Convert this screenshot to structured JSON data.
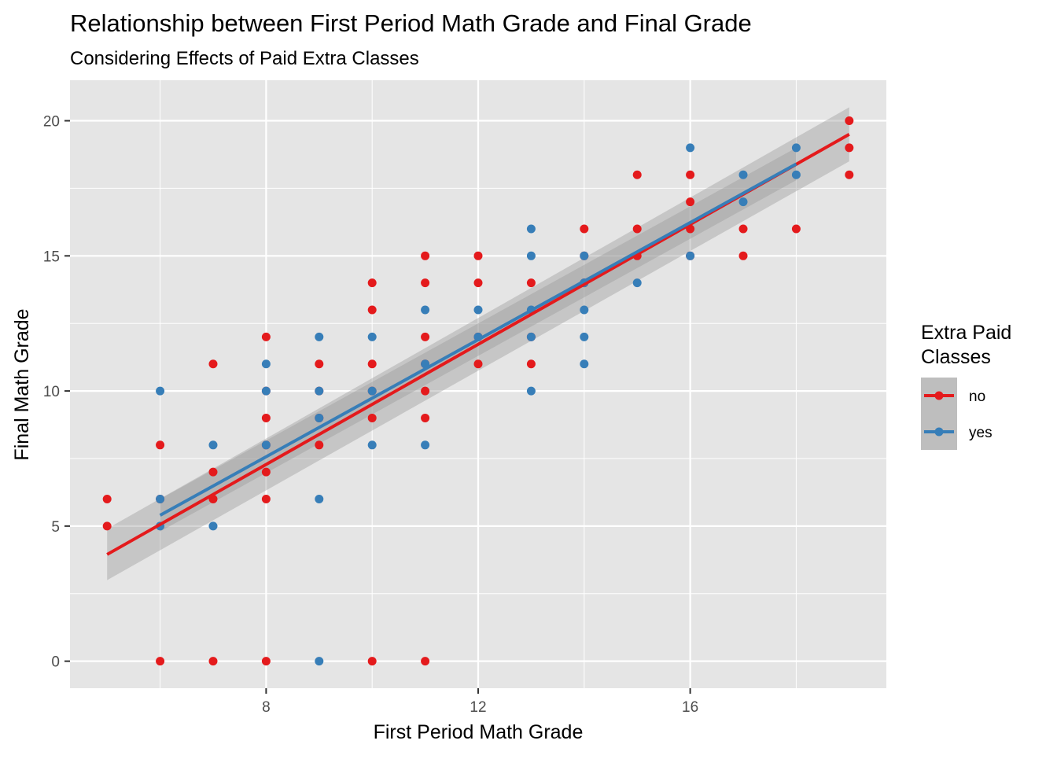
{
  "chart_data": {
    "type": "scatter",
    "title": "Relationship between First Period Math Grade and Final Grade",
    "subtitle": "Considering Effects of Paid Extra Classes",
    "xlabel": "First Period Math Grade",
    "ylabel": "Final Math Grade",
    "xlim": [
      4.3,
      19.7
    ],
    "ylim": [
      -1,
      21.5
    ],
    "x_ticks": [
      8,
      12,
      16
    ],
    "y_ticks": [
      0,
      5,
      10,
      15,
      20
    ],
    "grid": true,
    "legend": {
      "title_lines": [
        "Extra Paid",
        "Classes"
      ],
      "position": "right"
    },
    "series": [
      {
        "name": "no",
        "color": "#E41A1C",
        "points": [
          [
            5,
            6
          ],
          [
            5,
            5
          ],
          [
            6,
            8
          ],
          [
            6,
            6
          ],
          [
            6,
            0
          ],
          [
            7,
            11
          ],
          [
            7,
            7
          ],
          [
            7,
            6
          ],
          [
            7,
            0
          ],
          [
            8,
            12
          ],
          [
            8,
            10
          ],
          [
            8,
            9
          ],
          [
            8,
            8
          ],
          [
            8,
            7
          ],
          [
            8,
            6
          ],
          [
            8,
            0
          ],
          [
            9,
            11
          ],
          [
            9,
            10
          ],
          [
            9,
            9
          ],
          [
            9,
            8
          ],
          [
            10,
            14
          ],
          [
            10,
            13
          ],
          [
            10,
            11
          ],
          [
            10,
            10
          ],
          [
            10,
            9
          ],
          [
            10,
            0
          ],
          [
            11,
            15
          ],
          [
            11,
            14
          ],
          [
            11,
            12
          ],
          [
            11,
            11
          ],
          [
            11,
            10
          ],
          [
            11,
            9
          ],
          [
            11,
            0
          ],
          [
            12,
            15
          ],
          [
            12,
            14
          ],
          [
            12,
            12
          ],
          [
            12,
            11
          ],
          [
            13,
            14
          ],
          [
            13,
            12
          ],
          [
            13,
            11
          ],
          [
            14,
            16
          ],
          [
            14,
            15
          ],
          [
            14,
            14
          ],
          [
            15,
            18
          ],
          [
            15,
            16
          ],
          [
            15,
            15
          ],
          [
            16,
            18
          ],
          [
            16,
            17
          ],
          [
            16,
            16
          ],
          [
            16,
            15
          ],
          [
            17,
            16
          ],
          [
            17,
            15
          ],
          [
            18,
            16
          ],
          [
            19,
            20
          ],
          [
            19,
            19
          ],
          [
            19,
            18
          ]
        ],
        "fit": {
          "x": [
            5,
            19
          ],
          "y": [
            3.95,
            19.5
          ]
        },
        "band": {
          "x": [
            5,
            19
          ],
          "lower": [
            3.0,
            18.5
          ],
          "upper": [
            4.9,
            20.5
          ]
        }
      },
      {
        "name": "yes",
        "color": "#377EB8",
        "points": [
          [
            6,
            10
          ],
          [
            6,
            6
          ],
          [
            6,
            5
          ],
          [
            7,
            8
          ],
          [
            7,
            5
          ],
          [
            8,
            11
          ],
          [
            8,
            10
          ],
          [
            8,
            8
          ],
          [
            9,
            12
          ],
          [
            9,
            10
          ],
          [
            9,
            9
          ],
          [
            9,
            6
          ],
          [
            9,
            0
          ],
          [
            10,
            12
          ],
          [
            10,
            10
          ],
          [
            10,
            8
          ],
          [
            11,
            13
          ],
          [
            11,
            11
          ],
          [
            11,
            8
          ],
          [
            12,
            13
          ],
          [
            12,
            12
          ],
          [
            13,
            16
          ],
          [
            13,
            15
          ],
          [
            13,
            13
          ],
          [
            13,
            12
          ],
          [
            13,
            10
          ],
          [
            14,
            15
          ],
          [
            14,
            14
          ],
          [
            14,
            13
          ],
          [
            14,
            12
          ],
          [
            14,
            11
          ],
          [
            15,
            14
          ],
          [
            16,
            19
          ],
          [
            16,
            15
          ],
          [
            17,
            18
          ],
          [
            17,
            17
          ],
          [
            18,
            19
          ],
          [
            18,
            18
          ]
        ],
        "fit": {
          "x": [
            6,
            18
          ],
          "y": [
            5.4,
            18.4
          ]
        },
        "band": {
          "x": [
            6,
            18
          ],
          "lower": [
            4.8,
            17.8
          ],
          "upper": [
            6.0,
            19.0
          ]
        }
      }
    ]
  }
}
